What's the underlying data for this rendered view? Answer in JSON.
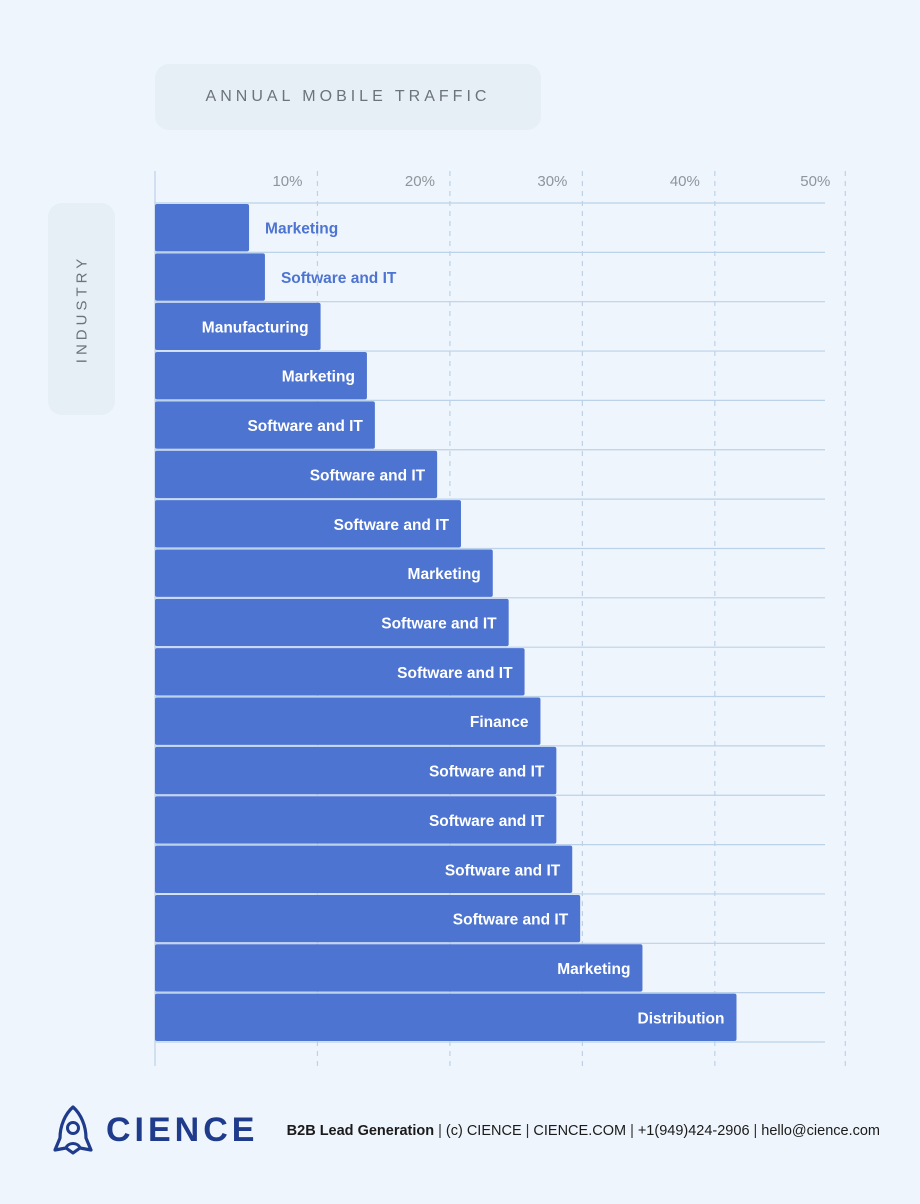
{
  "chart_data": {
    "type": "bar",
    "orientation": "horizontal",
    "title": "ANNUAL MOBILE TRAFFIC",
    "ylabel": "INDUSTRY",
    "xlabel": "",
    "xlim": [
      0,
      50
    ],
    "xticks": [
      10,
      20,
      30,
      40,
      50
    ],
    "xtick_labels": [
      "10%",
      "20%",
      "30%",
      "40%",
      "50%"
    ],
    "grid": true,
    "categories": [
      "Marketing",
      "Software and IT",
      "Manufacturing",
      "Marketing",
      "Software and IT",
      "Software and IT",
      "Software and IT",
      "Marketing",
      "Software and IT",
      "Software and IT",
      "Finance",
      "Software and IT",
      "Software and IT",
      "Software and IT",
      "Software and IT",
      "Marketing",
      "Distribution"
    ],
    "values": [
      7.1,
      8.3,
      12.5,
      16.0,
      16.6,
      21.3,
      23.1,
      25.5,
      26.7,
      27.9,
      29.1,
      30.3,
      30.3,
      31.5,
      32.1,
      36.8,
      43.9
    ]
  },
  "colors": {
    "bar": "#4d74d1",
    "background": "#eef5fc",
    "grid": "#bcd2e8",
    "brand": "#1f3c8c"
  },
  "footer": {
    "brand": "CIENCE",
    "tagline": "B2B Lead Generation",
    "copyright": "(c) CIENCE",
    "site": "CIENCE.COM",
    "phone": "+1(949)424-2906",
    "email": "hello@cience.com"
  }
}
